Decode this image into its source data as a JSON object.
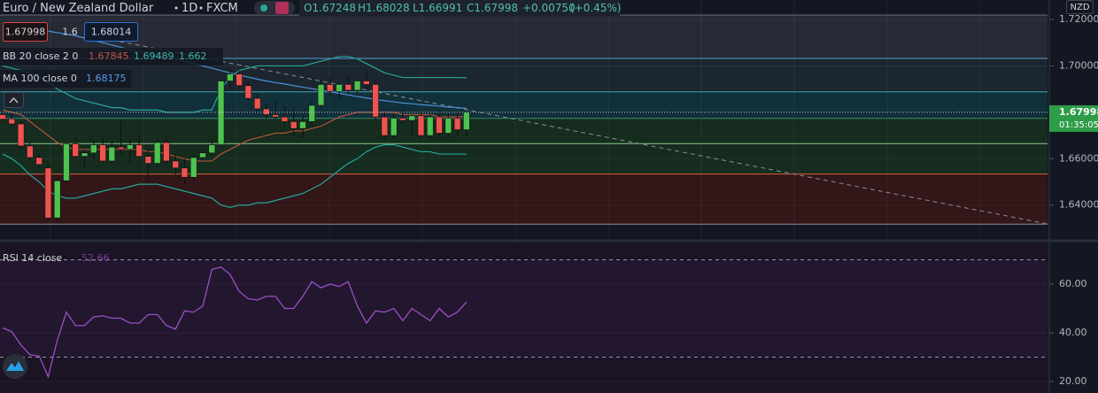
{
  "chart_data": [
    {
      "type": "candlestick",
      "title": "Euro / New Zealand Dollar",
      "interval": "1D",
      "source": "FXCM",
      "ohlc_header": [
        "O1.67248",
        "H1.68028",
        "L1.66991",
        "C1.67998"
      ],
      "change": "+0.00750",
      "change_pct": "(+0.45%)",
      "spread": "1.6",
      "ask": "1.68014",
      "currency": "NZD",
      "countdown": "01:35:05",
      "up_color": "#4ec24e",
      "down_color": "#ef5350",
      "categories": [
        null,
        null,
        null,
        null,
        null,
        null,
        null,
        null,
        null,
        null,
        null,
        null,
        null,
        null,
        null,
        null,
        null,
        null,
        null,
        null,
        null,
        null,
        null,
        null,
        null,
        null,
        null,
        null,
        null,
        null,
        null,
        null,
        null,
        null,
        null,
        null,
        null,
        null,
        null,
        null,
        null,
        null,
        null,
        null,
        null,
        null,
        null,
        null,
        null,
        null,
        null,
        null
      ],
      "open": [
        1.679,
        1.6772,
        1.675,
        1.6655,
        1.6605,
        1.656,
        1.6345,
        1.6505,
        1.6665,
        1.661,
        1.6625,
        1.666,
        1.659,
        1.665,
        1.664,
        1.666,
        1.661,
        1.658,
        1.667,
        1.659,
        1.656,
        1.652,
        1.6605,
        1.6625,
        1.666,
        1.6935,
        1.6965,
        1.6915,
        1.686,
        1.6815,
        1.679,
        1.678,
        1.676,
        1.673,
        1.676,
        1.683,
        1.692,
        1.689,
        1.692,
        1.6895,
        1.6935,
        1.692,
        1.678,
        1.67,
        1.6775,
        1.6765,
        1.6785,
        1.67,
        1.678,
        1.671,
        1.6775,
        1.67248
      ],
      "high": [
        1.6805,
        1.6795,
        1.676,
        1.667,
        1.662,
        1.6575,
        1.652,
        1.668,
        1.669,
        1.664,
        1.668,
        1.669,
        1.667,
        1.676,
        1.668,
        1.67,
        1.664,
        1.668,
        1.669,
        1.662,
        1.66,
        1.662,
        1.664,
        1.668,
        1.695,
        1.699,
        1.698,
        1.693,
        1.688,
        1.684,
        1.685,
        1.683,
        1.682,
        1.679,
        1.685,
        1.694,
        1.695,
        1.693,
        1.696,
        1.6945,
        1.6985,
        1.694,
        1.68,
        1.679,
        1.681,
        1.679,
        1.68,
        1.6795,
        1.681,
        1.679,
        1.68,
        1.68028
      ],
      "low": [
        1.676,
        1.674,
        1.664,
        1.659,
        1.656,
        1.6335,
        1.633,
        1.649,
        1.66,
        1.656,
        1.66,
        1.658,
        1.658,
        1.662,
        1.658,
        1.66,
        1.651,
        1.656,
        1.658,
        1.653,
        1.649,
        1.65,
        1.659,
        1.661,
        1.665,
        1.6905,
        1.69,
        1.685,
        1.68,
        1.677,
        1.676,
        1.674,
        1.67,
        1.669,
        1.674,
        1.682,
        1.687,
        1.686,
        1.688,
        1.688,
        1.69,
        1.676,
        1.669,
        1.669,
        1.675,
        1.67,
        1.669,
        1.669,
        1.67,
        1.669,
        1.67,
        1.66991
      ],
      "close": [
        1.677,
        1.675,
        1.6655,
        1.6605,
        1.6575,
        1.6345,
        1.6505,
        1.6665,
        1.661,
        1.6625,
        1.666,
        1.659,
        1.665,
        1.664,
        1.666,
        1.661,
        1.658,
        1.667,
        1.659,
        1.656,
        1.652,
        1.6605,
        1.6625,
        1.666,
        1.6935,
        1.6965,
        1.6915,
        1.686,
        1.6815,
        1.679,
        1.678,
        1.676,
        1.673,
        1.676,
        1.683,
        1.692,
        1.689,
        1.692,
        1.6895,
        1.6935,
        1.692,
        1.678,
        1.67,
        1.6775,
        1.6765,
        1.6785,
        1.67,
        1.678,
        1.671,
        1.6775,
        1.6725,
        1.67998
      ],
      "xlim": [
        -0.3,
        114.9
      ],
      "ylim": [
        1.6254,
        1.7284
      ],
      "yticks": [
        {
          "value": 1.72,
          "label": "1.72000"
        },
        {
          "value": 1.7,
          "label": "1.70000"
        },
        {
          "value": 1.66,
          "label": "1.66000"
        },
        {
          "value": 1.64,
          "label": "1.64000"
        }
      ],
      "grid": true,
      "zones": [
        {
          "from": 1.7219,
          "to": 1.7032,
          "color": "#262a35"
        },
        {
          "from": 1.7032,
          "to": 1.6888,
          "color": "#1c2630"
        },
        {
          "from": 1.6888,
          "to": 1.6774,
          "color": "#12303a"
        },
        {
          "from": 1.6774,
          "to": 1.6534,
          "color": "#152c1f"
        },
        {
          "from": 1.6534,
          "to": 1.6318,
          "color": "#321618"
        }
      ],
      "levels": [
        {
          "value": 1.7219,
          "color": "#6b6f7a"
        },
        {
          "value": 1.7032,
          "color": "#5b9bd5"
        },
        {
          "value": 1.6888,
          "color": "#3fa9b0"
        },
        {
          "value": 1.6774,
          "color": "#3a8a6a"
        },
        {
          "value": 1.6665,
          "color": "#8fc98f"
        },
        {
          "value": 1.6534,
          "color": "#d9603b"
        },
        {
          "value": 1.6318,
          "color": "#8a8e99"
        }
      ],
      "trendline": {
        "x": [
          12,
          115
        ],
        "values": [
          1.7112,
          1.6318
        ],
        "color": "#8a8e99"
      },
      "bb": {
        "name": "BB 20 close 2 0",
        "series": [
          {
            "name": "basis",
            "color": "#b5523b",
            "values": [
              1.681,
              1.68,
              1.679,
              1.676,
              1.673,
              1.67,
              1.667,
              1.665,
              1.664,
              1.664,
              1.664,
              1.664,
              1.664,
              1.664,
              1.664,
              1.664,
              1.663,
              1.663,
              1.662,
              1.661,
              1.66,
              1.659,
              1.659,
              1.659,
              1.662,
              1.664,
              1.666,
              1.668,
              1.669,
              1.67,
              1.671,
              1.671,
              1.672,
              1.672,
              1.673,
              1.674,
              1.676,
              1.678,
              1.679,
              1.68,
              1.68,
              1.68,
              1.68,
              1.68,
              1.679,
              1.679,
              1.679,
              1.679,
              1.678,
              1.678,
              1.678,
              1.67845
            ]
          },
          {
            "name": "upper",
            "color": "#26a69a",
            "values": [
              1.7,
              1.699,
              1.698,
              1.697,
              1.695,
              1.693,
              1.69,
              1.688,
              1.686,
              1.685,
              1.684,
              1.683,
              1.682,
              1.682,
              1.681,
              1.681,
              1.681,
              1.681,
              1.68,
              1.68,
              1.68,
              1.68,
              1.681,
              1.681,
              1.69,
              1.695,
              1.698,
              1.699,
              1.7,
              1.7,
              1.7,
              1.7,
              1.7,
              1.7,
              1.701,
              1.702,
              1.703,
              1.704,
              1.704,
              1.703,
              1.701,
              1.699,
              1.697,
              1.696,
              1.695,
              1.695,
              1.695,
              1.695,
              1.695,
              1.695,
              1.695,
              1.69489
            ]
          },
          {
            "name": "lower",
            "color": "#26a69a",
            "values": [
              1.662,
              1.66,
              1.657,
              1.653,
              1.65,
              1.646,
              1.644,
              1.643,
              1.643,
              1.644,
              1.645,
              1.646,
              1.647,
              1.647,
              1.648,
              1.649,
              1.649,
              1.649,
              1.648,
              1.647,
              1.646,
              1.645,
              1.644,
              1.643,
              1.64,
              1.639,
              1.64,
              1.64,
              1.641,
              1.641,
              1.642,
              1.643,
              1.644,
              1.645,
              1.647,
              1.649,
              1.652,
              1.655,
              1.658,
              1.66,
              1.663,
              1.665,
              1.666,
              1.666,
              1.665,
              1.664,
              1.663,
              1.663,
              1.662,
              1.662,
              1.662,
              1.662
            ]
          }
        ]
      },
      "ma": {
        "name": "MA 100 close 0",
        "color": "#4a90d9",
        "values": [
          null,
          null,
          null,
          null,
          null,
          1.715,
          1.7143,
          1.7137,
          1.713,
          1.712,
          1.711,
          1.71,
          1.709,
          1.708,
          1.707,
          1.7062,
          1.7053,
          1.7045,
          1.7037,
          1.7028,
          1.702,
          1.701,
          1.7,
          1.699,
          1.698,
          1.697,
          1.696,
          1.6952,
          1.6943,
          1.6935,
          1.6928,
          1.6922,
          1.6915,
          1.6908,
          1.6902,
          1.6895,
          1.6888,
          1.6882,
          1.6875,
          1.6868,
          1.6862,
          1.6855,
          1.685,
          1.6845,
          1.684,
          1.6837,
          1.6833,
          1.683,
          1.6827,
          1.6823,
          1.682,
          1.68175
        ]
      }
    },
    {
      "type": "line",
      "name": "RSI 14 close",
      "color": "#9b4fc4",
      "values": [
        42,
        40.5,
        35,
        31,
        30.5,
        22,
        37,
        48.5,
        43,
        43,
        46.5,
        47,
        46,
        46,
        44,
        44,
        47.5,
        47.5,
        43,
        41.5,
        49,
        48.5,
        51,
        66,
        67,
        64,
        57,
        54,
        53.5,
        55,
        55,
        50,
        50,
        55,
        61,
        58.5,
        60,
        59,
        61,
        51,
        44,
        49,
        48.5,
        50,
        45,
        50,
        47.5,
        45,
        50,
        46.5,
        48.5,
        52.66
      ],
      "xlim": [
        -0.3,
        114.9
      ],
      "ylim": [
        15.3,
        76.7
      ],
      "yticks": [
        {
          "value": 60,
          "label": "60.00"
        },
        {
          "value": 40,
          "label": "40.00"
        },
        {
          "value": 20,
          "label": "20.00"
        }
      ],
      "band": [
        30,
        70
      ],
      "band_color": "#22172f",
      "grid": true
    }
  ]
}
